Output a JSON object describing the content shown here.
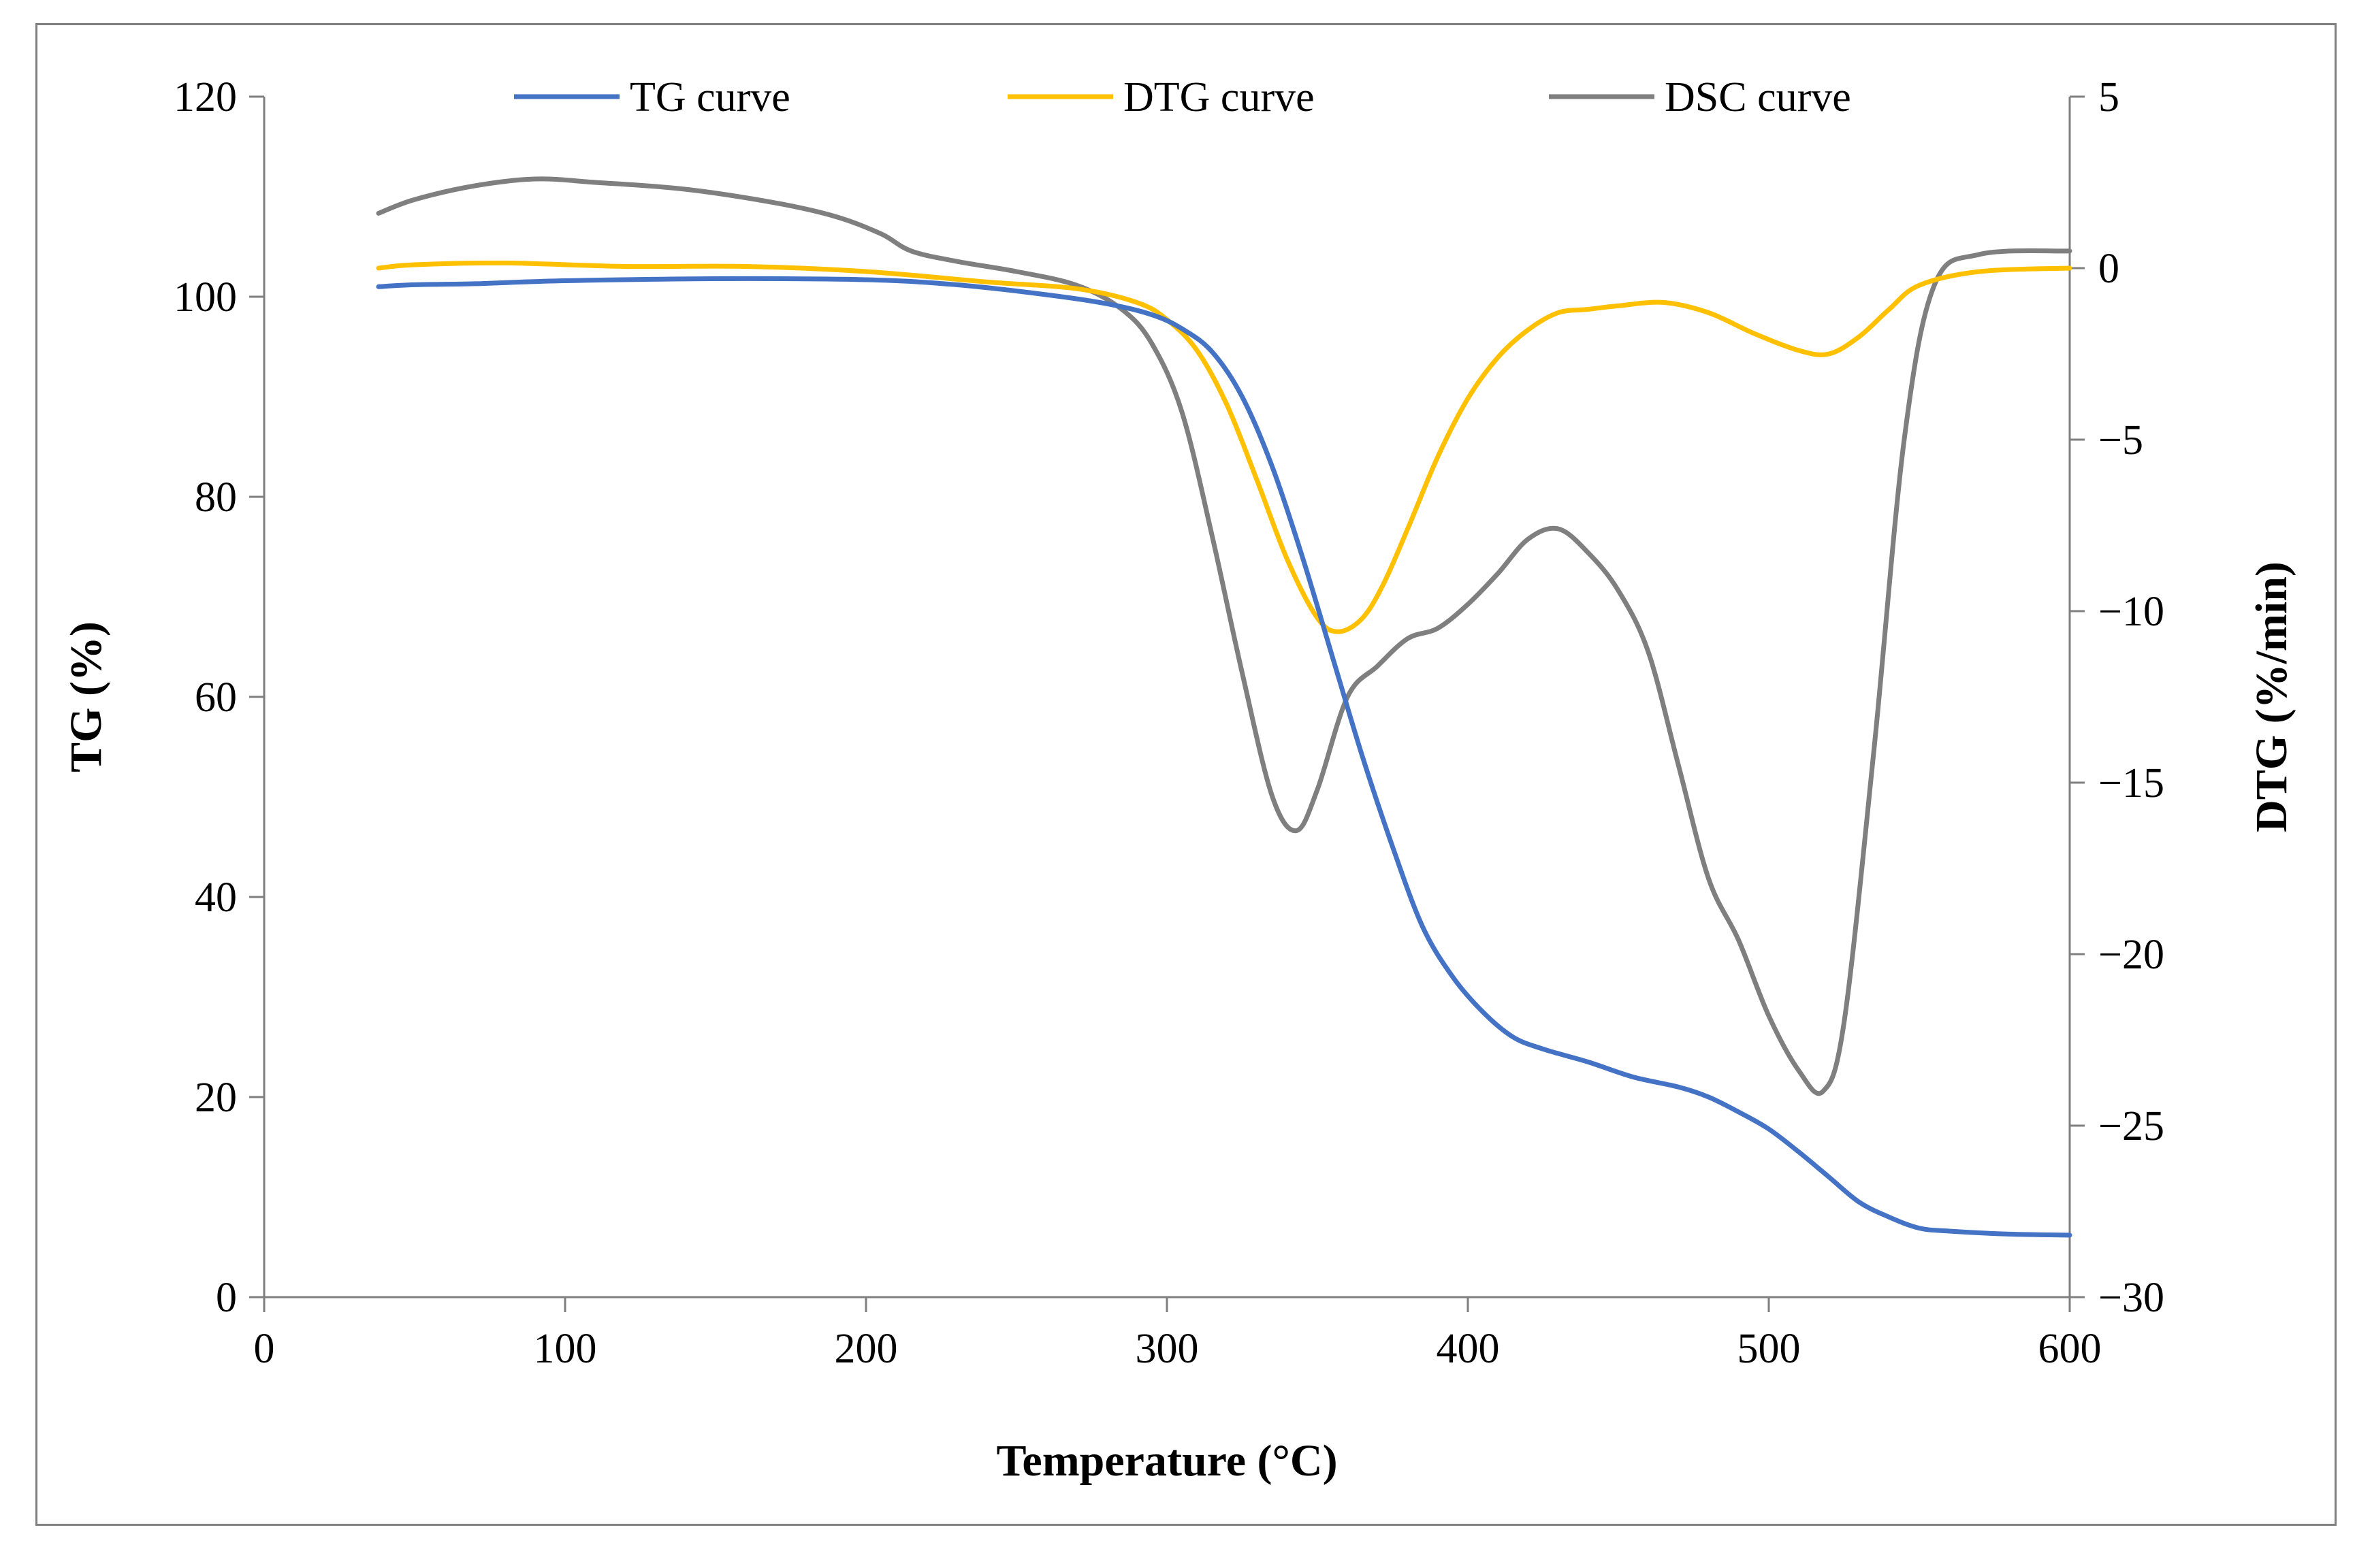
{
  "chart_data": {
    "type": "line",
    "xlabel": "Temperature  (°C)",
    "ylabel": "TG (%)",
    "y2label": "DTG (%/min)",
    "xlim": [
      0,
      600
    ],
    "ylim": [
      0,
      120
    ],
    "y2lim": [
      -30,
      5
    ],
    "x_ticks": [
      0,
      100,
      200,
      300,
      400,
      500,
      600
    ],
    "y_ticks": [
      0,
      20,
      40,
      60,
      80,
      100,
      120
    ],
    "y2_ticks": [
      5,
      0,
      -5,
      -10,
      -15,
      -20,
      -25,
      -30
    ],
    "y2_tick_labels": [
      "5",
      "0",
      "−5",
      "−10",
      "−15",
      "−20",
      "−25",
      "−30"
    ],
    "legend_position": "top",
    "grid": false,
    "series": [
      {
        "name": "TG curve",
        "axis": "left",
        "color": "#4472C4",
        "x": [
          38,
          50,
          70,
          100,
          150,
          200,
          230,
          260,
          280,
          295,
          305,
          315,
          325,
          335,
          345,
          355,
          365,
          375,
          385,
          395,
          405,
          415,
          425,
          440,
          455,
          470,
          480,
          490,
          500,
          510,
          520,
          530,
          540,
          550,
          560,
          580,
          600
        ],
        "y": [
          101,
          101.2,
          101.3,
          101.6,
          101.8,
          101.7,
          101.2,
          100.2,
          99.3,
          98.2,
          96.8,
          94.5,
          90,
          83,
          74,
          64,
          54,
          45,
          37,
          32,
          28.5,
          26,
          24.8,
          23.5,
          22,
          21,
          20,
          18.5,
          16.8,
          14.5,
          12,
          9.5,
          8,
          6.9,
          6.6,
          6.3,
          6.2
        ]
      },
      {
        "name": "DTG curve",
        "axis": "right",
        "color": "#FFC000",
        "x": [
          38,
          50,
          80,
          120,
          160,
          200,
          240,
          270,
          290,
          300,
          310,
          320,
          330,
          340,
          350,
          357,
          365,
          372,
          380,
          390,
          400,
          410,
          420,
          430,
          440,
          450,
          465,
          480,
          495,
          510,
          520,
          530,
          540,
          550,
          570,
          600
        ],
        "y": [
          0,
          0.1,
          0.15,
          0.05,
          0.05,
          -0.1,
          -0.4,
          -0.6,
          -1.0,
          -1.5,
          -2.4,
          -4.0,
          -6.2,
          -8.5,
          -10.2,
          -10.6,
          -10.2,
          -9.2,
          -7.6,
          -5.5,
          -3.8,
          -2.6,
          -1.8,
          -1.3,
          -1.2,
          -1.1,
          -1.0,
          -1.3,
          -1.9,
          -2.4,
          -2.5,
          -2.0,
          -1.2,
          -0.5,
          -0.1,
          0.0
        ]
      },
      {
        "name": "DSC curve",
        "axis": "right",
        "color": "#7F7F7F",
        "x": [
          38,
          50,
          70,
          90,
          110,
          140,
          170,
          190,
          205,
          215,
          230,
          250,
          270,
          285,
          295,
          305,
          315,
          325,
          335,
          343,
          350,
          360,
          370,
          380,
          390,
          400,
          410,
          420,
          430,
          440,
          450,
          460,
          470,
          480,
          490,
          500,
          510,
          518,
          525,
          535,
          545,
          555,
          570,
          600
        ],
        "y": [
          1.6,
          2.0,
          2.4,
          2.6,
          2.5,
          2.3,
          1.9,
          1.5,
          1.0,
          0.5,
          0.2,
          -0.1,
          -0.5,
          -1.2,
          -2.2,
          -4.2,
          -7.8,
          -11.8,
          -15.4,
          -16.4,
          -15.2,
          -12.5,
          -11.6,
          -10.8,
          -10.5,
          -9.8,
          -8.9,
          -7.9,
          -7.6,
          -8.3,
          -9.4,
          -11.2,
          -14.5,
          -17.8,
          -19.6,
          -21.8,
          -23.4,
          -24.0,
          -22.0,
          -14.0,
          -5.0,
          -0.5,
          0.4,
          0.5
        ]
      }
    ]
  }
}
